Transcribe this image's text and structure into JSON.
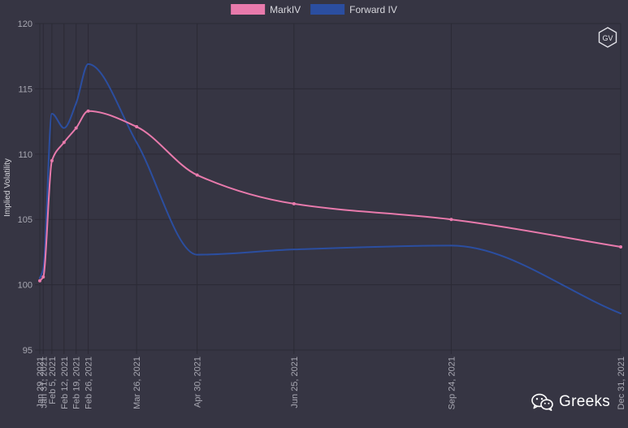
{
  "chart_data": {
    "type": "line",
    "title": "",
    "ylabel": "Implied Volatility",
    "xlabel": "",
    "ylim": [
      95,
      120
    ],
    "yticks": [
      95,
      100,
      105,
      110,
      115,
      120
    ],
    "grid": true,
    "legend_position": "top-center",
    "x_labels": [
      "Jan 29, 2021",
      "Jan 31, 2021",
      "Feb 5, 2021",
      "Feb 12, 2021",
      "Feb 19, 2021",
      "Feb 26, 2021",
      "Mar 26, 2021",
      "Apr 30, 2021",
      "Jun 25, 2021",
      "Sep 24, 2021",
      "Dec 31, 2021"
    ],
    "x_days": [
      0,
      2,
      7,
      14,
      21,
      28,
      56,
      91,
      147,
      238,
      336
    ],
    "series": [
      {
        "name": "MarkIV",
        "color": "#e87aac",
        "values": [
          100.3,
          100.6,
          109.5,
          110.9,
          112.0,
          113.3,
          112.1,
          108.4,
          106.2,
          105.0,
          102.9
        ],
        "show_points": true
      },
      {
        "name": "Forward IV",
        "color": "#2b4ea0",
        "values": [
          100.5,
          101.2,
          113.1,
          112.0,
          113.9,
          116.9,
          110.9,
          102.3,
          102.7,
          103.0,
          97.8
        ],
        "show_points": false
      }
    ]
  },
  "logo": {
    "label": "GV"
  },
  "watermark": {
    "text": "Greeks",
    "icon": "wechat-icon"
  }
}
